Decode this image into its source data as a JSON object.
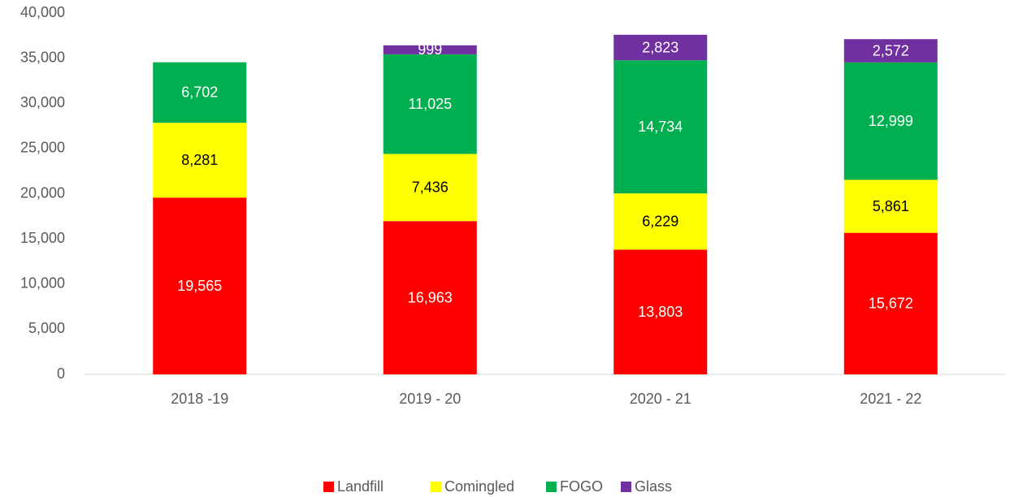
{
  "chart_data": {
    "type": "stacked_bar",
    "categories": [
      "2018 -19",
      "2019 - 20",
      "2020 - 21",
      "2021 - 22"
    ],
    "series": [
      {
        "name": "Landfill",
        "color": "#ff0000",
        "label_color": "#ffffff",
        "values": [
          19565,
          16963,
          13803,
          15672
        ],
        "value_labels": [
          "19,565",
          "16,963",
          "13,803",
          "15,672"
        ]
      },
      {
        "name": "Comingled",
        "color": "#ffff00",
        "label_color": "#000000",
        "values": [
          8281,
          7436,
          6229,
          5861
        ],
        "value_labels": [
          "8,281",
          "7,436",
          "6,229",
          "5,861"
        ]
      },
      {
        "name": "FOGO",
        "color": "#00b050",
        "label_color": "#ffffff",
        "values": [
          6702,
          11025,
          14734,
          12999
        ],
        "value_labels": [
          "6,702",
          "11,025",
          "14,734",
          "12,999"
        ]
      },
      {
        "name": "Glass",
        "color": "#7030a0",
        "label_color": "#ffffff",
        "values": [
          null,
          999,
          2823,
          2572
        ],
        "value_labels": [
          null,
          "999",
          "2,823",
          "2,572"
        ]
      }
    ],
    "ylim": [
      0,
      40000
    ],
    "yticks": [
      0,
      {
        "value": 5000,
        "label": "5,000"
      },
      {
        "value": 10000,
        "label": "10,000"
      },
      {
        "value": 15000,
        "label": "15,000"
      },
      {
        "value": 20000,
        "label": "20,000"
      },
      {
        "value": 25000,
        "label": "25,000"
      },
      {
        "value": 30000,
        "label": "30,000"
      },
      {
        "value": 35000,
        "label": "35,000"
      },
      {
        "value": 40000,
        "label": "40,000"
      }
    ],
    "grid": false,
    "legend": "bottom"
  }
}
